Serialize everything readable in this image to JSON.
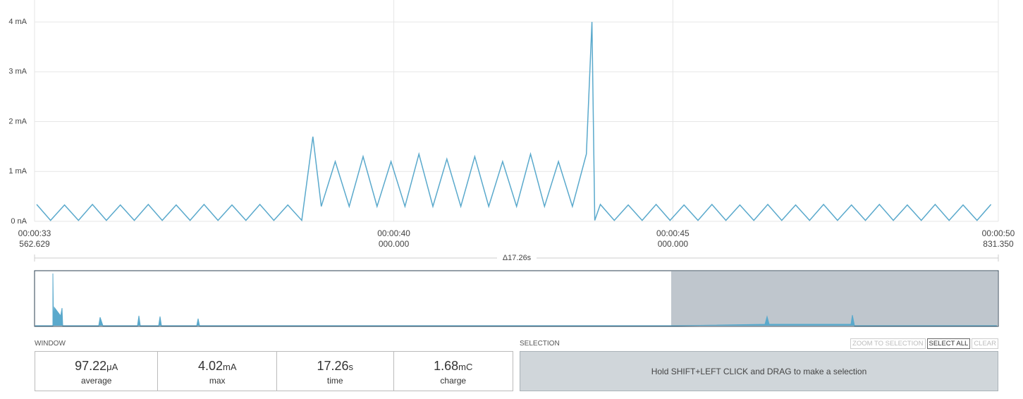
{
  "chart_data": {
    "type": "line",
    "grid": true,
    "ylim": [
      0,
      4.44
    ],
    "yticks": [
      {
        "value": 0,
        "label": "0 nA"
      },
      {
        "value": 1,
        "label": "1 mA"
      },
      {
        "value": 2,
        "label": "2 mA"
      },
      {
        "value": 3,
        "label": "3 mA"
      },
      {
        "value": 4,
        "label": "4 mA"
      }
    ],
    "xlim": [
      33.562629,
      50.83135
    ],
    "xticks": [
      {
        "value": 33.562629,
        "label": [
          "00:00:33",
          "562.629"
        ]
      },
      {
        "value": 40,
        "label": [
          "00:00:40",
          "000.000"
        ]
      },
      {
        "value": 45,
        "label": [
          "00:00:45",
          "000.000"
        ]
      },
      {
        "value": 50.83135,
        "label": [
          "00:00:50",
          "831.350"
        ]
      }
    ],
    "span_label": "Δ17.26s",
    "x": [
      33.6,
      33.85,
      34.1,
      34.35,
      34.6,
      34.85,
      35.1,
      35.35,
      35.6,
      35.85,
      36.1,
      36.35,
      36.6,
      36.85,
      37.1,
      37.35,
      37.6,
      37.85,
      38.1,
      38.35,
      38.55,
      38.7,
      38.95,
      39.2,
      39.45,
      39.7,
      39.95,
      40.2,
      40.45,
      40.7,
      40.95,
      41.2,
      41.45,
      41.7,
      41.95,
      42.2,
      42.45,
      42.7,
      42.95,
      43.2,
      43.45,
      43.55,
      43.6,
      43.7,
      43.95,
      44.2,
      44.45,
      44.7,
      44.95,
      45.2,
      45.45,
      45.7,
      45.95,
      46.2,
      46.45,
      46.7,
      46.95,
      47.2,
      47.45,
      47.7,
      47.95,
      48.2,
      48.45,
      48.7,
      48.95,
      49.2,
      49.45,
      49.7,
      49.95,
      50.2,
      50.45,
      50.7
    ],
    "series": [
      {
        "color": "#5aa9cc",
        "values": [
          0.34,
          0.02,
          0.33,
          0.02,
          0.34,
          0.02,
          0.33,
          0.02,
          0.34,
          0.02,
          0.33,
          0.02,
          0.34,
          0.02,
          0.33,
          0.02,
          0.34,
          0.02,
          0.33,
          0.02,
          1.7,
          0.3,
          1.2,
          0.3,
          1.3,
          0.3,
          1.2,
          0.3,
          1.35,
          0.3,
          1.25,
          0.3,
          1.3,
          0.3,
          1.2,
          0.3,
          1.35,
          0.3,
          1.2,
          0.3,
          1.35,
          4.0,
          0.02,
          0.34,
          0.02,
          0.33,
          0.02,
          0.34,
          0.02,
          0.33,
          0.02,
          0.34,
          0.02,
          0.33,
          0.02,
          0.34,
          0.02,
          0.33,
          0.02,
          0.34,
          0.02,
          0.33,
          0.02,
          0.34,
          0.02,
          0.33,
          0.02,
          0.34,
          0.02,
          0.33,
          0.02,
          0.34
        ]
      }
    ]
  },
  "window": {
    "title": "WINDOW",
    "stats": [
      {
        "value": "97.22",
        "unit": "μA",
        "label": "average"
      },
      {
        "value": "4.02",
        "unit": "mA",
        "label": "max"
      },
      {
        "value": "17.26",
        "unit": "s",
        "label": "time"
      },
      {
        "value": "1.68",
        "unit": "mC",
        "label": "charge"
      }
    ]
  },
  "selection": {
    "title": "SELECTION",
    "buttons": [
      "ZOOM TO SELECTION",
      "SELECT ALL",
      "CLEAR"
    ],
    "message": "Hold SHIFT+LEFT CLICK and DRAG to make a selection"
  }
}
